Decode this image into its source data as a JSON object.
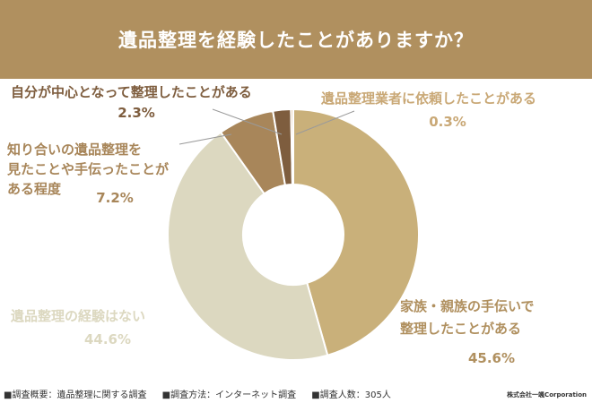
{
  "chart_data": {
    "type": "pie",
    "title": "遺品整理を経験したことがありますか？",
    "slices": [
      {
        "label_lines": [
          "家族・親族の手伝いで",
          "整理したことがある"
        ],
        "value": 45.6,
        "value_text": "45.6%",
        "color": "#c9b07a",
        "label_color": "#b0905f"
      },
      {
        "label_lines": [
          "遺品整理の経験はない"
        ],
        "value": 44.6,
        "value_text": "44.6%",
        "color": "#dcd8c0",
        "label_color": "#dcd8c0"
      },
      {
        "label_lines": [
          "知り合いの遺品整理を",
          "見たことや手伝ったことが",
          "ある程度"
        ],
        "value": 7.2,
        "value_text": "7.2%",
        "color": "#a8865a",
        "label_color": "#a8865a"
      },
      {
        "label_lines": [
          "自分が中心となって整理したことがある"
        ],
        "value": 2.3,
        "value_text": "2.3%",
        "color": "#7e5d3e",
        "label_color": "#7e5d3e"
      },
      {
        "label_lines": [
          "遺品整理業者に依頼したことがある"
        ],
        "value": 0.3,
        "value_text": "0.3%",
        "color": "#d9b98c",
        "label_color": "#c9a876"
      }
    ]
  },
  "footer": {
    "items": [
      "■調査概要：遺品整理に関する調査",
      "■調査方法：インターネット調査",
      "■調査人数：305人"
    ],
    "brand": "株式会社一颯Corporation"
  }
}
